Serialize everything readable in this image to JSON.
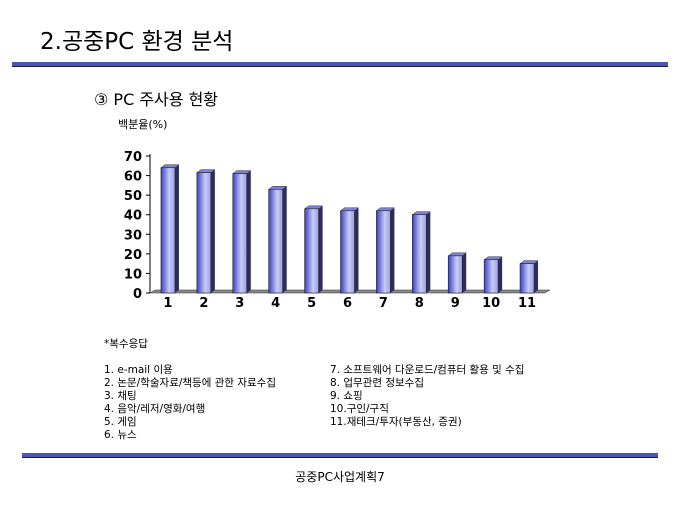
{
  "title": "2.공중PC 환경 분석",
  "subtitle": "③  PC 주사용 현황",
  "footer": "공중PC사업계획7",
  "note": "*복수응답",
  "legend_left": [
    "1. e-mail 이용",
    "2. 논문/학술자료/책등에 관한 자료수집",
    "3. 채팅",
    "4. 음악/레저/영화/여행",
    "5. 게임",
    "6. 뉴스"
  ],
  "legend_right": [
    "7. 소프트웨어 다운로드/컴퓨터 활용 및 수집",
    "8. 업무관련 정보수집",
    "9. 쇼핑",
    "10.구인/구직",
    "11.재테크/투자(부동산, 증권)"
  ],
  "colors": {
    "bar": "#5a5fd8",
    "rule": "#4a55b8"
  },
  "chart_data": {
    "type": "bar",
    "title": "",
    "ylabel": "백분율(%)",
    "xlabel": "",
    "categories": [
      "1",
      "2",
      "3",
      "4",
      "5",
      "6",
      "7",
      "8",
      "9",
      "10",
      "11"
    ],
    "values": [
      64,
      61.5,
      61,
      53,
      43,
      42,
      42,
      40,
      19,
      17,
      15
    ],
    "ylim": [
      0,
      70
    ],
    "yticks": [
      0,
      10,
      20,
      30,
      40,
      50,
      60,
      70
    ],
    "grid": false,
    "legend": "none",
    "style": "3d"
  }
}
